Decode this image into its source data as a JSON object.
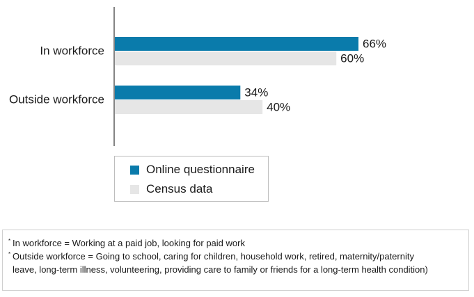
{
  "chart_data": {
    "type": "bar",
    "orientation": "horizontal",
    "categories": [
      "In workforce",
      "Outside workforce"
    ],
    "series": [
      {
        "name": "Online questionnaire",
        "values": [
          66,
          34
        ],
        "labels": [
          "66%",
          "34%"
        ]
      },
      {
        "name": "Census data",
        "values": [
          60,
          40
        ],
        "labels": [
          "60%",
          "40%"
        ]
      }
    ],
    "xlim": [
      0,
      100
    ],
    "grid": false,
    "legend_position": "bottom-left"
  },
  "colors": {
    "online": "#0a7bab",
    "census": "#e6e6e6",
    "axis": "#333333"
  },
  "footnotes": {
    "marker": "*",
    "note1": "In workforce = Working at a paid job, looking for paid work",
    "note2_line1": "Outside workforce = Going to school, caring for children, household work, retired, maternity/paternity",
    "note2_line2": "leave, long-term illness, volunteering, providing care to family or friends for a long-term health condition)"
  }
}
